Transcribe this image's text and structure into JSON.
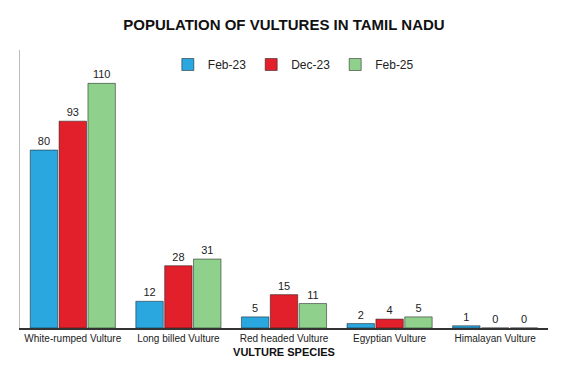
{
  "chart_data": {
    "type": "bar",
    "title": "POPULATION OF VULTURES IN TAMIL NADU",
    "x_label": "VULTURE SPECIES",
    "categories": [
      "White-rumped Vulture",
      "Long billed Vulture",
      "Red headed Vulture",
      "Egyptian Vulture",
      "Himalayan Vulture"
    ],
    "series": [
      {
        "name": "Feb-23",
        "color": "#2aa7df",
        "values": [
          80,
          12,
          5,
          2,
          1
        ]
      },
      {
        "name": "Dec-23",
        "color": "#e2202b",
        "values": [
          93,
          28,
          15,
          4,
          0
        ]
      },
      {
        "name": "Feb-25",
        "color": "#8fd18c",
        "values": [
          110,
          31,
          11,
          5,
          0
        ]
      }
    ],
    "ylim": [
      0,
      125
    ],
    "grid": false,
    "legend": "top",
    "data_labels": true,
    "tick_labels": "x"
  }
}
